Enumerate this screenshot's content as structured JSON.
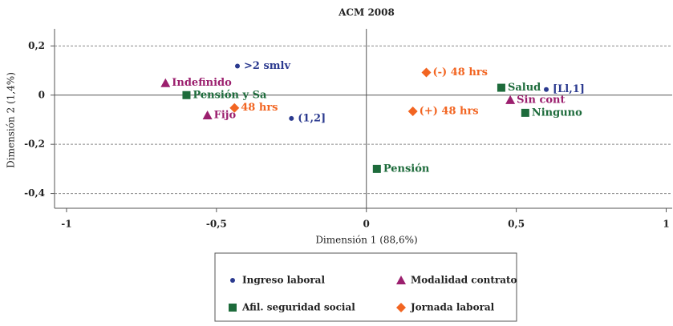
{
  "chart_data": {
    "type": "scatter",
    "title": "ACM 2008",
    "xlabel": "Dimensión 1 (88,6%)",
    "ylabel": "Dimensión 2 (1,4%)",
    "xlim": [
      -1.04,
      1.02
    ],
    "ylim": [
      -0.46,
      0.25
    ],
    "xticks": [
      -1,
      {
        "value": -0.5,
        "label": "-0,5"
      },
      0,
      {
        "value": 0.5,
        "label": "0,5"
      },
      1
    ],
    "yticks": [
      {
        "value": 0.2,
        "label": "0,2"
      },
      0,
      {
        "value": -0.2,
        "label": "-0,2"
      },
      {
        "value": -0.4,
        "label": "-0,4"
      }
    ],
    "grid": true,
    "legend_position": "bottom",
    "series": [
      {
        "name": "Ingreso laboral",
        "color": "#2b3a8f",
        "marker": "circle",
        "x": [
          -0.43,
          -0.25,
          0.6
        ],
        "y": [
          0.118,
          -0.095,
          0.023
        ],
        "labels": [
          ">2 smlv",
          "(1,2]",
          "[Ll,1]"
        ]
      },
      {
        "name": "Modalidad contrato",
        "color": "#9b1f6e",
        "marker": "triangle",
        "x": [
          -0.67,
          -0.53,
          0.48
        ],
        "y": [
          0.049,
          -0.082,
          -0.02
        ],
        "labels": [
          "Indefinido",
          "Fijo",
          "Sin cont"
        ]
      },
      {
        "name": "Afil. seguridad social",
        "color": "#1d6b3b",
        "marker": "square",
        "x": [
          -0.6,
          0.45,
          0.53,
          0.035
        ],
        "y": [
          0,
          0.03,
          -0.072,
          -0.3
        ],
        "labels": [
          "Pensión y Sa",
          "Salud",
          "Ninguno",
          "Pensión"
        ]
      },
      {
        "name": "Jornada laboral",
        "color": "#f26522",
        "marker": "diamond",
        "x": [
          0.2,
          -0.44,
          0.155
        ],
        "y": [
          0.092,
          -0.052,
          -0.066
        ],
        "labels": [
          "(-) 48 hrs",
          "48 hrs",
          "(+) 48 hrs"
        ]
      }
    ]
  }
}
